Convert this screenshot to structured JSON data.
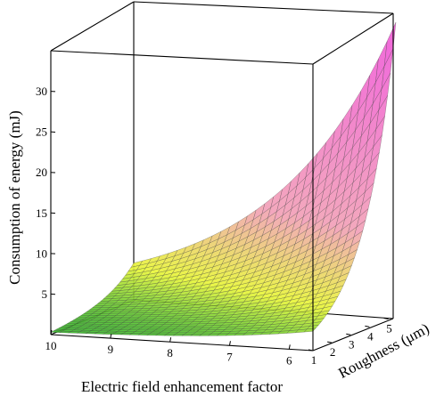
{
  "chart_data": {
    "type": "surface3d",
    "title": "",
    "xlabel": "Electric field enhancement factor",
    "ylabel": "Roughness (μm)",
    "zlabel": "Consumption of energy (mJ)",
    "x_ticks": [
      "10",
      "9",
      "8",
      "7",
      "6"
    ],
    "y_ticks": [
      "1",
      "2",
      "3",
      "4",
      "5"
    ],
    "z_ticks": [
      "5",
      "10",
      "15",
      "20",
      "25",
      "30"
    ],
    "xlim": [
      5.6,
      10
    ],
    "ylim": [
      1,
      5.4
    ],
    "zlim": [
      0,
      35
    ],
    "surface_samples": [
      {
        "x": 10,
        "y": 1,
        "z": 0.3
      },
      {
        "x": 10,
        "y": 5.4,
        "z": 9.0
      },
      {
        "x": 5.6,
        "y": 1,
        "z": 2.5
      },
      {
        "x": 5.6,
        "y": 5.4,
        "z": 34.0
      }
    ],
    "colors": {
      "low": "#2eb82e",
      "mid_low": "#e8f53a",
      "mid": "#f2a0b8",
      "high": "#f05ad8",
      "mesh": "#3a3a3a",
      "box": "#000000"
    },
    "grid": false
  }
}
